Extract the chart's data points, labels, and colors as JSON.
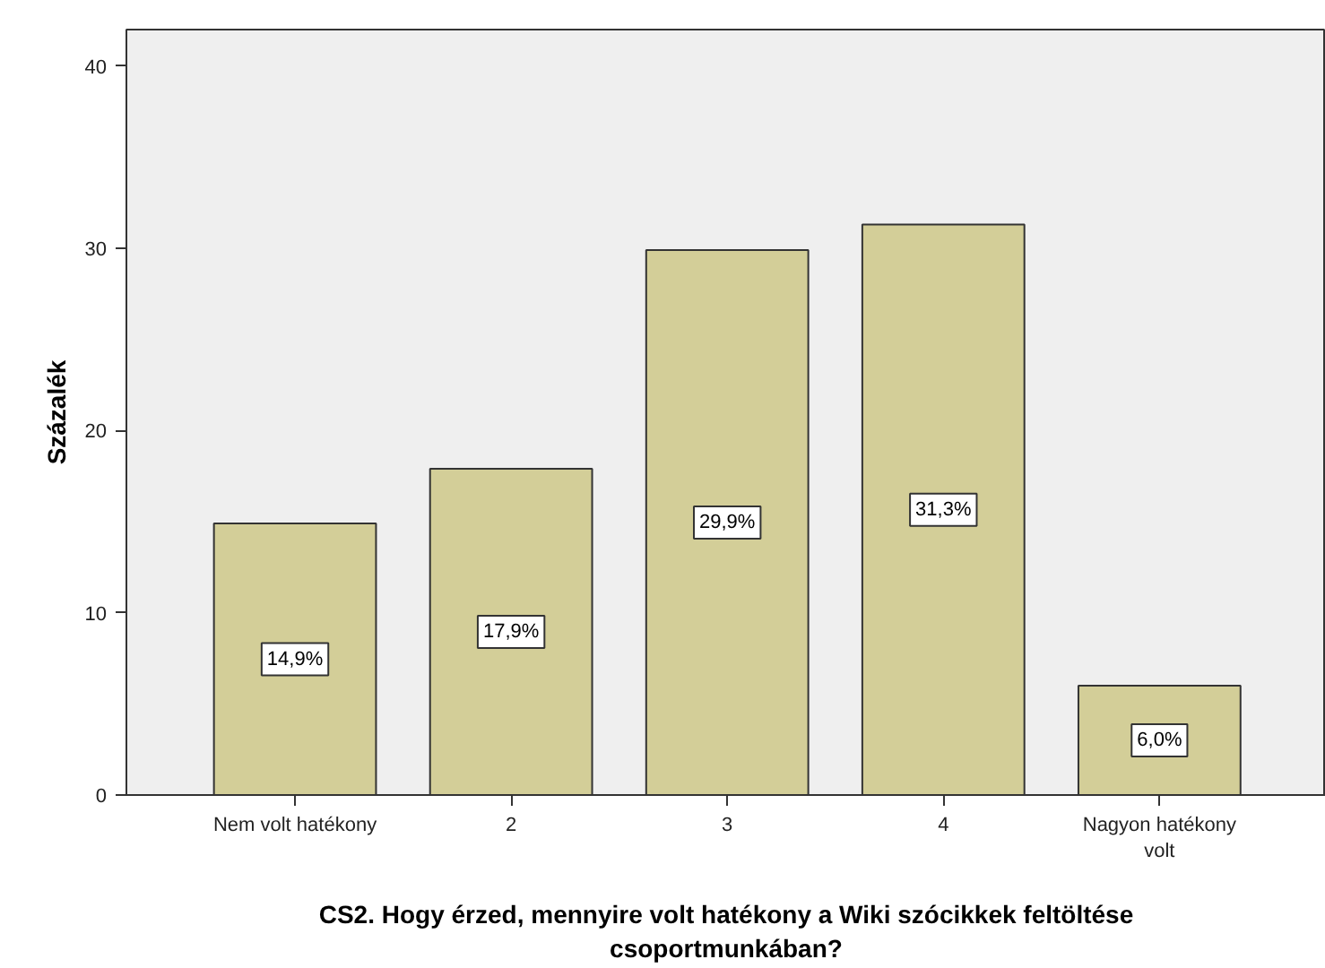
{
  "chart_data": {
    "type": "bar",
    "categories": [
      "Nem volt hatékony",
      "2",
      "3",
      "4",
      "Nagyon hatékony\nvolt"
    ],
    "values": [
      14.9,
      17.9,
      29.9,
      31.3,
      6.0
    ],
    "value_labels": [
      "14,9%",
      "17,9%",
      "29,9%",
      "31,3%",
      "6,0%"
    ],
    "color": "#d3ce98",
    "ylabel": "Százalék",
    "xlabel": "CS2. Hogy érzed, mennyire volt hatékony a Wiki szócikkek feltöltése\ncsoportmunkában?",
    "ylim": [
      0,
      42
    ],
    "yticks": [
      0,
      10,
      20,
      30,
      40
    ],
    "grid": false
  }
}
